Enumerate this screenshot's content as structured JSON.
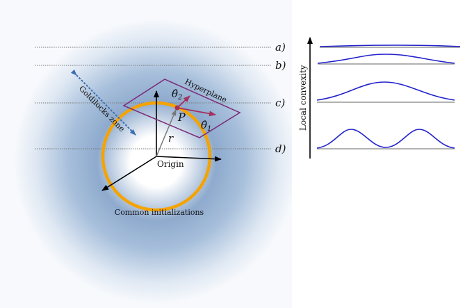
{
  "levels": [
    {
      "label": "a)"
    },
    {
      "label": "b)"
    },
    {
      "label": "c)"
    },
    {
      "label": "d)"
    }
  ],
  "labels": {
    "hyperplane": "Hyperplane",
    "goldilocks": "Goldilocks zone",
    "origin": "Origin",
    "common_init": "Common initializations",
    "radius": "r",
    "point": "P",
    "theta1": "θ̂",
    "theta1_sub": "1",
    "theta2": "θ̂",
    "theta2_sub": "2",
    "y_axis": "Local convexity"
  },
  "colors": {
    "ring": "#f5a300",
    "hyperplane": "#7a2a78",
    "theta_arrows": "#a3305f",
    "goldilocks_arrow": "#3a6fb0",
    "curve": "#2222cc",
    "baseline": "#999999",
    "glow": "#7f9fc6"
  }
}
